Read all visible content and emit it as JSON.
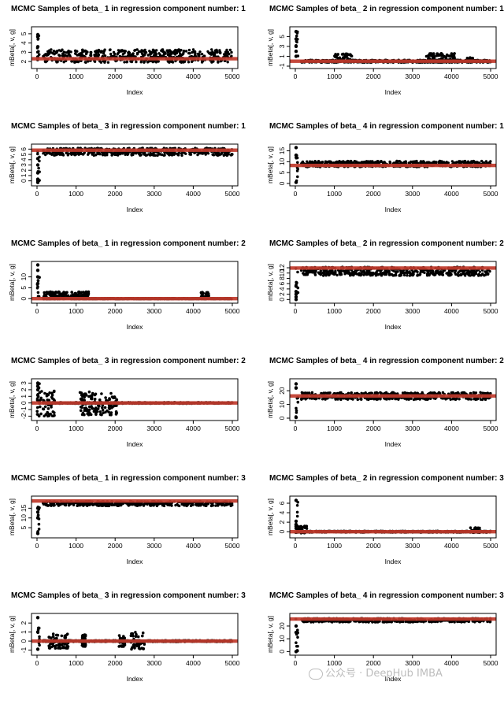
{
  "chart_data": [
    {
      "type": "scatter",
      "title": "MCMC Samples of beta_ 1  in regression component number: 1",
      "xlabel": "Index",
      "ylabel": "mBeta[, v, g]",
      "xlim": [
        0,
        5000
      ],
      "ylim": [
        1.5,
        5.5
      ],
      "xticks": [
        "0",
        "1000",
        "2000",
        "3000",
        "4000",
        "5000"
      ],
      "yticks": [
        "2",
        "3",
        "4",
        "5"
      ],
      "ytick_values": [
        2,
        3,
        4,
        5
      ],
      "true_value": 2.3,
      "band": [
        1.9,
        3.3
      ],
      "spikes": [
        4.9,
        2.5,
        3.6
      ],
      "clusters": []
    },
    {
      "type": "scatter",
      "title": "MCMC Samples of beta_ 2  in regression component number: 1",
      "xlabel": "Index",
      "ylabel": "mBeta[, v, g]",
      "xlim": [
        0,
        5000
      ],
      "ylim": [
        -1,
        6.5
      ],
      "xticks": [
        "0",
        "1000",
        "2000",
        "3000",
        "4000",
        "5000"
      ],
      "yticks": [
        "-1",
        "1",
        "3",
        "5"
      ],
      "ytick_values": [
        -1,
        1,
        3,
        5
      ],
      "true_value": 0,
      "band": [
        -0.25,
        0.25
      ],
      "spikes": [
        6.0,
        4.5,
        3.0,
        2.0,
        1.0
      ],
      "clusters": [
        [
          1000,
          1450,
          -0.2,
          1.5
        ],
        [
          3350,
          4100,
          -0.2,
          1.6
        ],
        [
          4400,
          4550,
          -0.2,
          0.8
        ]
      ]
    },
    {
      "type": "scatter",
      "title": "MCMC Samples of beta_ 3  in regression component number: 1",
      "xlabel": "Index",
      "ylabel": "mBeta[, v, g]",
      "xlim": [
        0,
        5000
      ],
      "ylim": [
        -0.5,
        6.5
      ],
      "xticks": [
        "0",
        "1000",
        "2000",
        "3000",
        "4000",
        "5000"
      ],
      "yticks": [
        "0",
        "1",
        "2",
        "3",
        "4",
        "5",
        "6"
      ],
      "ytick_values": [
        0,
        1,
        2,
        3,
        4,
        5,
        6
      ],
      "true_value": 5.8,
      "band": [
        4.8,
        6.2
      ],
      "spikes": [
        -0.3,
        0.3,
        1.5,
        3.0,
        4.2
      ],
      "clusters": []
    },
    {
      "type": "scatter",
      "title": "MCMC Samples of beta_ 4  in regression component number: 1",
      "xlabel": "Index",
      "ylabel": "mBeta[, v, g]",
      "xlim": [
        0,
        5000
      ],
      "ylim": [
        0,
        17
      ],
      "xticks": [
        "0",
        "1000",
        "2000",
        "3000",
        "4000",
        "5000"
      ],
      "yticks": [
        "0",
        "5",
        "10",
        "15"
      ],
      "ytick_values": [
        0,
        5,
        10,
        15
      ],
      "true_value": 8.3,
      "band": [
        7.6,
        10.3
      ],
      "spikes": [
        16.5,
        0.5,
        13.0
      ],
      "clusters": []
    },
    {
      "type": "scatter",
      "title": "MCMC Samples of beta_ 1  in regression component number: 2",
      "xlabel": "Index",
      "ylabel": "mBeta[, v, g]",
      "xlim": [
        0,
        5000
      ],
      "ylim": [
        -1,
        16
      ],
      "xticks": [
        "0",
        "1000",
        "2000",
        "3000",
        "4000",
        "5000"
      ],
      "yticks": [
        "0",
        "5",
        "10"
      ],
      "ytick_values": [
        0,
        5,
        10
      ],
      "true_value": 0,
      "band": [
        -0.2,
        0.2
      ],
      "spikes": [
        15.5,
        13.0,
        10.0,
        7.0
      ],
      "clusters": [
        [
          150,
          1350,
          0,
          3.2
        ],
        [
          4200,
          4400,
          0,
          3.0
        ]
      ]
    },
    {
      "type": "scatter",
      "title": "MCMC Samples of beta_ 2  in regression component number: 2",
      "xlabel": "Index",
      "ylabel": "mBeta[, v, g]",
      "xlim": [
        0,
        5000
      ],
      "ylim": [
        -0.5,
        13.5
      ],
      "xticks": [
        "0",
        "1000",
        "2000",
        "3000",
        "4000",
        "5000"
      ],
      "yticks": [
        "0",
        "2",
        "4",
        "6",
        "8",
        "10",
        "12"
      ],
      "ytick_values": [
        0,
        2,
        4,
        6,
        8,
        10,
        12
      ],
      "true_value": 11.9,
      "band": [
        9.0,
        12.3
      ],
      "spikes": [
        0,
        1.0,
        2.0,
        3.0,
        5.0
      ],
      "clusters": []
    },
    {
      "type": "scatter",
      "title": "MCMC Samples of beta_ 3  in regression component number: 2",
      "xlabel": "Index",
      "ylabel": "mBeta[, v, g]",
      "xlim": [
        0,
        5000
      ],
      "ylim": [
        -2.3,
        3.3
      ],
      "xticks": [
        "0",
        "1000",
        "2000",
        "3000",
        "4000",
        "5000"
      ],
      "yticks": [
        "-2",
        "-1",
        "0",
        "1",
        "2",
        "3"
      ],
      "ytick_values": [
        -2,
        -1,
        0,
        1,
        2,
        3
      ],
      "true_value": 0,
      "band": [
        -0.1,
        0.1
      ],
      "spikes": [
        3.0,
        2.5,
        2.0
      ],
      "clusters": [
        [
          0,
          450,
          -2.0,
          1.8
        ],
        [
          1100,
          2050,
          -1.8,
          1.7
        ]
      ]
    },
    {
      "type": "scatter",
      "title": "MCMC Samples of beta_ 4  in regression component number: 2",
      "xlabel": "Index",
      "ylabel": "mBeta[, v, g]",
      "xlim": [
        0,
        5000
      ],
      "ylim": [
        0,
        27
      ],
      "xticks": [
        "0",
        "1000",
        "2000",
        "3000",
        "4000",
        "5000"
      ],
      "yticks": [
        "0",
        "10",
        "20"
      ],
      "ytick_values": [
        0,
        10,
        20
      ],
      "true_value": 16.2,
      "band": [
        13.5,
        18.8
      ],
      "spikes": [
        0.5,
        25.0,
        22.0
      ],
      "clusters": []
    },
    {
      "type": "scatter",
      "title": "MCMC Samples of beta_ 1  in regression component number: 3",
      "xlabel": "Index",
      "ylabel": "mBeta[, v, g]",
      "xlim": [
        0,
        5000
      ],
      "ylim": [
        1,
        20
      ],
      "xticks": [
        "0",
        "1000",
        "2000",
        "3000",
        "4000",
        "5000"
      ],
      "yticks": [
        "5",
        "10",
        "15"
      ],
      "ytick_values": [
        5,
        10,
        15
      ],
      "true_value": 18.7,
      "band": [
        16.2,
        18.6
      ],
      "spikes": [
        2.0,
        10.0,
        13.0,
        15.0
      ],
      "clusters": []
    },
    {
      "type": "scatter",
      "title": "MCMC Samples of beta_ 2  in regression component number: 3",
      "xlabel": "Index",
      "ylabel": "mBeta[, v, g]",
      "xlim": [
        0,
        5000
      ],
      "ylim": [
        -0.8,
        7
      ],
      "xticks": [
        "0",
        "1000",
        "2000",
        "3000",
        "4000",
        "5000"
      ],
      "yticks": [
        "0",
        "2",
        "4",
        "6"
      ],
      "ytick_values": [
        0,
        2,
        4,
        6
      ],
      "true_value": 0,
      "band": [
        -0.15,
        0.15
      ],
      "spikes": [
        6.6,
        2.2,
        1.5
      ],
      "clusters": [
        [
          0,
          300,
          -0.3,
          1.2
        ],
        [
          4450,
          4750,
          -0.2,
          0.9
        ]
      ]
    },
    {
      "type": "scatter",
      "title": "MCMC Samples of beta_ 3  in regression component number: 3",
      "xlabel": "Index",
      "ylabel": "mBeta[, v, g]",
      "xlim": [
        0,
        5000
      ],
      "ylim": [
        -1.3,
        2.8
      ],
      "xticks": [
        "0",
        "1000",
        "2000",
        "3000",
        "4000",
        "5000"
      ],
      "yticks": [
        "-1",
        "0",
        "1",
        "2"
      ],
      "ytick_values": [
        -1,
        0,
        1,
        2
      ],
      "true_value": 0,
      "band": [
        -0.08,
        0.08
      ],
      "spikes": [
        2.6,
        1.0,
        -0.9
      ],
      "clusters": [
        [
          300,
          800,
          -0.8,
          0.8
        ],
        [
          1150,
          1250,
          -0.6,
          0.7
        ],
        [
          2100,
          2250,
          -0.6,
          0.8
        ],
        [
          2400,
          2750,
          -0.9,
          1.0
        ]
      ]
    },
    {
      "type": "scatter",
      "title": "MCMC Samples of beta_ 4  in regression component number: 3",
      "xlabel": "Index",
      "ylabel": "mBeta[, v, g]",
      "xlim": [
        0,
        5000
      ],
      "ylim": [
        -1,
        28
      ],
      "xticks": [
        "0",
        "1000",
        "2000",
        "3000",
        "4000",
        "5000"
      ],
      "yticks": [
        "0",
        "10",
        "20"
      ],
      "ytick_values": [
        0,
        10,
        20
      ],
      "true_value": 25.5,
      "band": [
        23.0,
        26.0
      ],
      "spikes": [
        0,
        15.0,
        20.0
      ],
      "clusters": []
    }
  ],
  "watermark": {
    "text": "公众号 · DeepHub IMBA"
  },
  "colors": {
    "trace": "#000000",
    "true_line": "#c0392b",
    "axis": "#000000"
  }
}
